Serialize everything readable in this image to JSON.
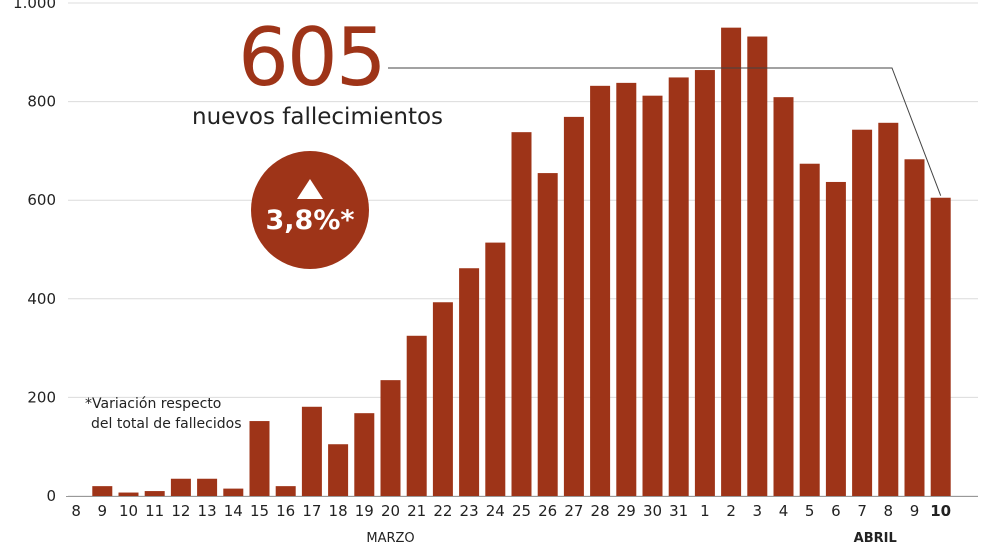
{
  "headline": {
    "value": "605",
    "label": "nuevos fallecimientos",
    "badge_value": "3,8%*",
    "badge_icon": "triangle-up-icon",
    "footnote_line1": "*Variación respecto",
    "footnote_line2": "del total de fallecidos"
  },
  "colors": {
    "bar": "#9e3418",
    "grid": "#dcdcdc",
    "text": "#222222",
    "pointer": "#444444"
  },
  "chart_data": {
    "type": "bar",
    "categories": [
      "8",
      "9",
      "10",
      "11",
      "12",
      "13",
      "14",
      "15",
      "16",
      "17",
      "18",
      "19",
      "20",
      "21",
      "22",
      "23",
      "24",
      "25",
      "26",
      "27",
      "28",
      "29",
      "30",
      "31",
      "1",
      "2",
      "3",
      "4",
      "5",
      "6",
      "7",
      "8",
      "9",
      "10"
    ],
    "values": [
      0,
      20,
      7,
      10,
      35,
      35,
      15,
      152,
      20,
      181,
      105,
      168,
      235,
      325,
      393,
      462,
      514,
      738,
      655,
      769,
      832,
      838,
      812,
      849,
      864,
      950,
      932,
      809,
      674,
      637,
      743,
      757,
      683,
      605
    ],
    "yticks": [
      0,
      200,
      400,
      600,
      800,
      1000
    ],
    "ytick_labels": [
      "0",
      "200",
      "400",
      "600",
      "800",
      "1.000"
    ],
    "ylim": [
      0,
      1000
    ],
    "bold_categories": [
      33
    ],
    "month_labels": [
      {
        "label": "MARZO",
        "at": 12,
        "bold": false
      },
      {
        "label": "ABRIL",
        "at": 30.5,
        "bold": true
      }
    ],
    "grid": true,
    "pointer_to_index": 33
  }
}
